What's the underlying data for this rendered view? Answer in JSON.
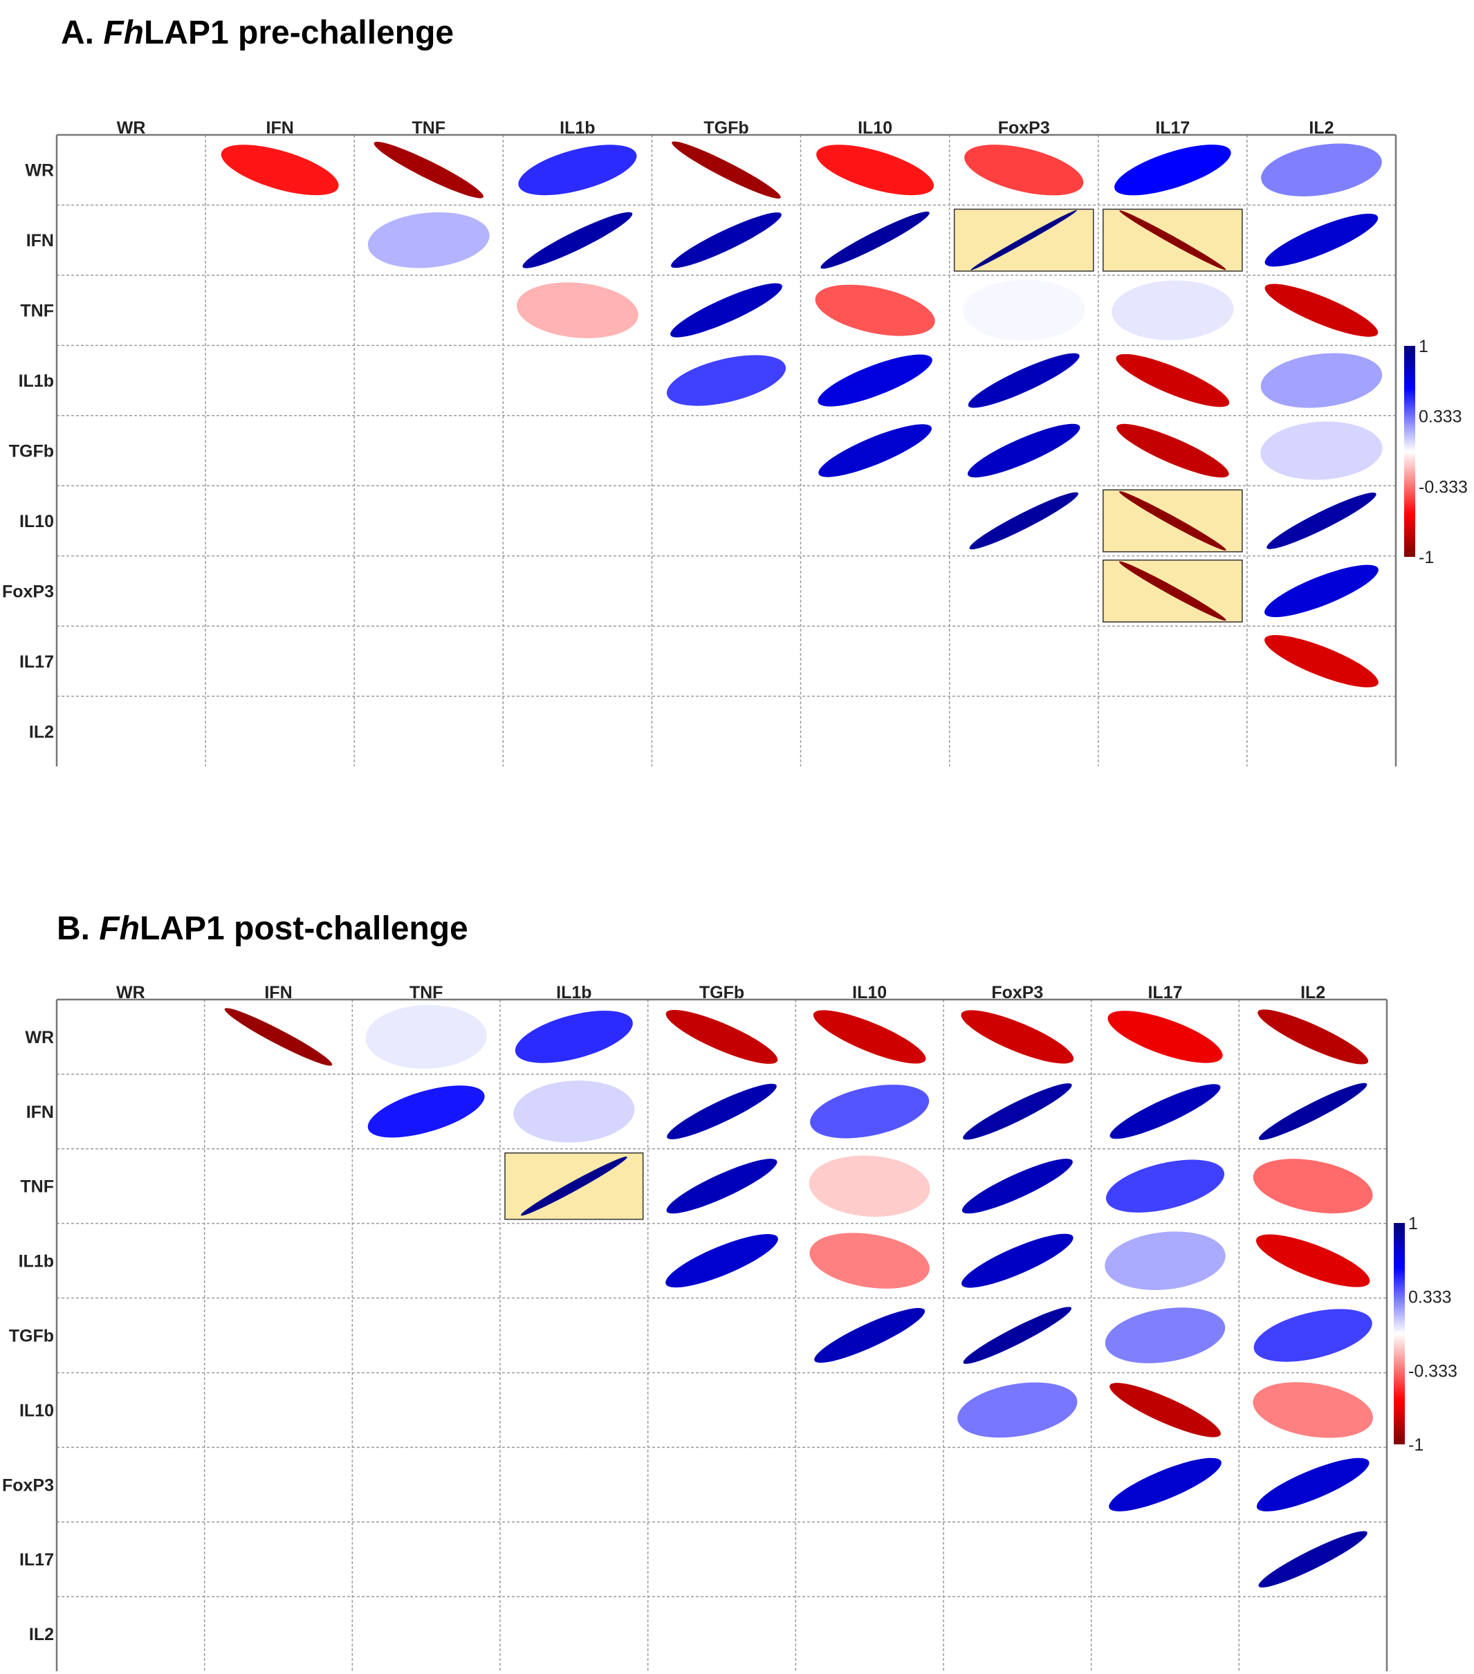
{
  "chart_data": [
    {
      "type": "heatmap",
      "subtype": "correlation-ellipse-matrix",
      "title": {
        "prefix": "A. ",
        "italic": "Fh",
        "suffix": "LAP1 pre-challenge"
      },
      "variables": [
        "WR",
        "IFN",
        "TNF",
        "IL1b",
        "TGFb",
        "IL10",
        "FoxP3",
        "IL17",
        "IL2"
      ],
      "triangle": "upper",
      "colorbar": {
        "ticks": [
          "1",
          "0.333",
          "-0.333",
          "-1"
        ],
        "range": [
          -1,
          1
        ]
      },
      "highlight_color": "#fbe9a9",
      "correlations": [
        {
          "row": "WR",
          "col": "IFN",
          "r": -0.55
        },
        {
          "row": "WR",
          "col": "TNF",
          "r": -0.88
        },
        {
          "row": "WR",
          "col": "IL1b",
          "r": 0.5
        },
        {
          "row": "WR",
          "col": "TGFb",
          "r": -0.9
        },
        {
          "row": "WR",
          "col": "IL10",
          "r": -0.55
        },
        {
          "row": "WR",
          "col": "FoxP3",
          "r": -0.45
        },
        {
          "row": "WR",
          "col": "IL17",
          "r": 0.6
        },
        {
          "row": "WR",
          "col": "IL2",
          "r": 0.3
        },
        {
          "row": "IFN",
          "col": "TNF",
          "r": 0.18
        },
        {
          "row": "IFN",
          "col": "IL1b",
          "r": 0.87
        },
        {
          "row": "IFN",
          "col": "TGFb",
          "r": 0.85
        },
        {
          "row": "IFN",
          "col": "IL10",
          "r": 0.9
        },
        {
          "row": "IFN",
          "col": "FoxP3",
          "r": 0.98,
          "highlight": true
        },
        {
          "row": "IFN",
          "col": "IL17",
          "r": -0.97,
          "highlight": true
        },
        {
          "row": "IFN",
          "col": "IL2",
          "r": 0.75
        },
        {
          "row": "TNF",
          "col": "IL1b",
          "r": -0.18
        },
        {
          "row": "TNF",
          "col": "TGFb",
          "r": 0.8
        },
        {
          "row": "TNF",
          "col": "IL10",
          "r": -0.4
        },
        {
          "row": "TNF",
          "col": "FoxP3",
          "r": 0.02
        },
        {
          "row": "TNF",
          "col": "IL17",
          "r": 0.06
        },
        {
          "row": "TNF",
          "col": "IL2",
          "r": -0.75
        },
        {
          "row": "IL1b",
          "col": "TGFb",
          "r": 0.45
        },
        {
          "row": "IL1b",
          "col": "IL10",
          "r": 0.7
        },
        {
          "row": "IL1b",
          "col": "FoxP3",
          "r": 0.82
        },
        {
          "row": "IL1b",
          "col": "IL17",
          "r": -0.75
        },
        {
          "row": "IL1b",
          "col": "IL2",
          "r": 0.22
        },
        {
          "row": "TGFb",
          "col": "IL10",
          "r": 0.75
        },
        {
          "row": "TGFb",
          "col": "FoxP3",
          "r": 0.78
        },
        {
          "row": "TGFb",
          "col": "IL17",
          "r": -0.78
        },
        {
          "row": "TGFb",
          "col": "IL2",
          "r": 0.1
        },
        {
          "row": "IL10",
          "col": "FoxP3",
          "r": 0.9
        },
        {
          "row": "IL10",
          "col": "IL17",
          "r": -0.96,
          "highlight": true
        },
        {
          "row": "IL10",
          "col": "IL2",
          "r": 0.88
        },
        {
          "row": "FoxP3",
          "col": "IL17",
          "r": -0.96,
          "highlight": true
        },
        {
          "row": "FoxP3",
          "col": "IL2",
          "r": 0.72
        },
        {
          "row": "IL17",
          "col": "IL2",
          "r": -0.72
        }
      ]
    },
    {
      "type": "heatmap",
      "subtype": "correlation-ellipse-matrix",
      "title": {
        "prefix": "B. ",
        "italic": "Fh",
        "suffix": "LAP1 post-challenge"
      },
      "variables": [
        "WR",
        "IFN",
        "TNF",
        "IL1b",
        "TGFb",
        "IL10",
        "FoxP3",
        "IL17",
        "IL2"
      ],
      "triangle": "upper",
      "colorbar": {
        "ticks": [
          "1",
          "0.333",
          "-0.333",
          "-1"
        ],
        "range": [
          -1,
          1
        ]
      },
      "highlight_color": "#fbe9a9",
      "correlations": [
        {
          "row": "WR",
          "col": "IFN",
          "r": -0.92
        },
        {
          "row": "WR",
          "col": "TNF",
          "r": 0.05
        },
        {
          "row": "WR",
          "col": "IL1b",
          "r": 0.5
        },
        {
          "row": "WR",
          "col": "TGFb",
          "r": -0.78
        },
        {
          "row": "WR",
          "col": "IL10",
          "r": -0.75
        },
        {
          "row": "WR",
          "col": "FoxP3",
          "r": -0.75
        },
        {
          "row": "WR",
          "col": "IL17",
          "r": -0.65
        },
        {
          "row": "WR",
          "col": "IL2",
          "r": -0.82
        },
        {
          "row": "IFN",
          "col": "TNF",
          "r": 0.55
        },
        {
          "row": "IFN",
          "col": "IL1b",
          "r": 0.1
        },
        {
          "row": "IFN",
          "col": "TGFb",
          "r": 0.85
        },
        {
          "row": "IFN",
          "col": "IL10",
          "r": 0.4
        },
        {
          "row": "IFN",
          "col": "FoxP3",
          "r": 0.88
        },
        {
          "row": "IFN",
          "col": "IL17",
          "r": 0.82
        },
        {
          "row": "IFN",
          "col": "IL2",
          "r": 0.9
        },
        {
          "row": "TNF",
          "col": "IL1b",
          "r": 0.96,
          "highlight": true
        },
        {
          "row": "TNF",
          "col": "TGFb",
          "r": 0.82
        },
        {
          "row": "TNF",
          "col": "IL10",
          "r": -0.12
        },
        {
          "row": "TNF",
          "col": "FoxP3",
          "r": 0.82
        },
        {
          "row": "TNF",
          "col": "IL17",
          "r": 0.45
        },
        {
          "row": "TNF",
          "col": "IL2",
          "r": -0.35
        },
        {
          "row": "IL1b",
          "col": "TGFb",
          "r": 0.75
        },
        {
          "row": "IL1b",
          "col": "IL10",
          "r": -0.3
        },
        {
          "row": "IL1b",
          "col": "FoxP3",
          "r": 0.78
        },
        {
          "row": "IL1b",
          "col": "IL17",
          "r": 0.2
        },
        {
          "row": "IL1b",
          "col": "IL2",
          "r": -0.7
        },
        {
          "row": "TGFb",
          "col": "IL10",
          "r": 0.82
        },
        {
          "row": "TGFb",
          "col": "FoxP3",
          "r": 0.9
        },
        {
          "row": "TGFb",
          "col": "IL17",
          "r": 0.3
        },
        {
          "row": "TGFb",
          "col": "IL2",
          "r": 0.45
        },
        {
          "row": "IL10",
          "col": "FoxP3",
          "r": 0.32
        },
        {
          "row": "IL10",
          "col": "IL17",
          "r": -0.8
        },
        {
          "row": "IL10",
          "col": "IL2",
          "r": -0.3
        },
        {
          "row": "FoxP3",
          "col": "IL17",
          "r": 0.75
        },
        {
          "row": "FoxP3",
          "col": "IL2",
          "r": 0.75
        },
        {
          "row": "IL17",
          "col": "IL2",
          "r": 0.88
        }
      ]
    }
  ]
}
